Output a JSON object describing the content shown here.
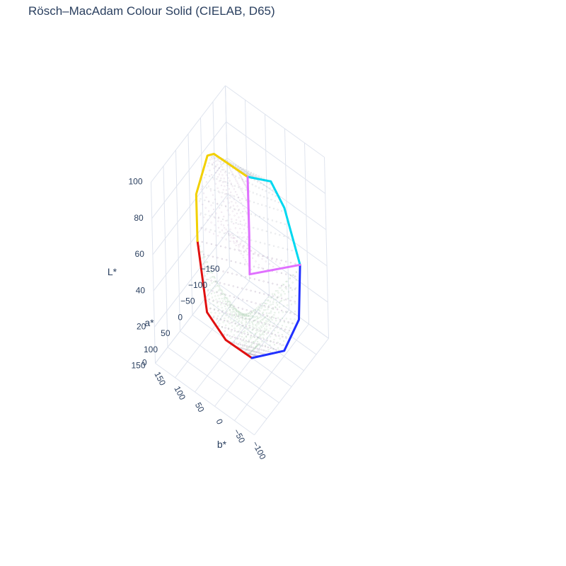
{
  "chart_data": {
    "type": "scatter3d",
    "title": "Rösch–MacAdam Colour Solid (CIELAB, D65)",
    "axes": {
      "x": {
        "label": "a*",
        "range": [
          -150,
          150
        ],
        "ticks": [
          150,
          100,
          50,
          0,
          -50,
          -100,
          -150
        ],
        "tick_labels": [
          "150",
          "100",
          "50",
          "0",
          "−50",
          "−100",
          "−150"
        ]
      },
      "y": {
        "label": "b*",
        "range": [
          -100,
          150
        ],
        "ticks": [
          150,
          100,
          50,
          0,
          -50,
          -100
        ],
        "tick_labels": [
          "150",
          "100",
          "50",
          "0",
          "−50",
          "−100"
        ]
      },
      "z": {
        "label": "L*",
        "range": [
          0,
          100
        ],
        "ticks": [
          0,
          20,
          40,
          60,
          80,
          100
        ],
        "tick_labels": [
          "0",
          "20",
          "40",
          "60",
          "80",
          "100"
        ]
      }
    },
    "grid": true,
    "surface": {
      "description_points": "optimal colour solid boundary, thin-stroke point cloud",
      "white_point": [
        0,
        0,
        100
      ],
      "black_point": [
        0,
        0,
        0
      ]
    },
    "edges": [
      {
        "name": "red",
        "color": "#e01010",
        "points": [
          [
            65,
            90,
            62
          ],
          [
            78,
            70,
            45
          ],
          [
            80,
            60,
            30
          ],
          [
            55,
            30,
            15
          ],
          [
            0,
            0,
            0
          ]
        ]
      },
      {
        "name": "yellow",
        "color": "#f2d000",
        "points": [
          [
            0,
            0,
            100
          ],
          [
            -15,
            95,
            95
          ],
          [
            -20,
            115,
            90
          ],
          [
            20,
            120,
            75
          ],
          [
            65,
            90,
            62
          ]
        ]
      },
      {
        "name": "cyan",
        "color": "#00d8f0",
        "points": [
          [
            0,
            0,
            100
          ],
          [
            -60,
            -20,
            90
          ],
          [
            -80,
            -40,
            75
          ],
          [
            -60,
            -90,
            55
          ]
        ]
      },
      {
        "name": "blue",
        "color": "#2030ff",
        "points": [
          [
            -60,
            -90,
            55
          ],
          [
            -20,
            -110,
            35
          ],
          [
            10,
            -90,
            20
          ],
          [
            0,
            0,
            0
          ]
        ]
      },
      {
        "name": "magenta",
        "color": "#e070ff",
        "points": [
          [
            0,
            0,
            100
          ],
          [
            60,
            -40,
            85
          ],
          [
            85,
            -55,
            70
          ],
          [
            -60,
            -90,
            55
          ]
        ]
      }
    ]
  }
}
